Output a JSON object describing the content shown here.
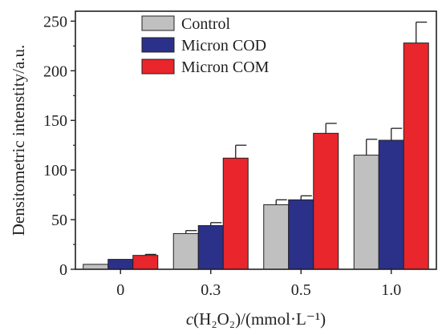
{
  "chart_data": {
    "type": "bar",
    "categories": [
      "0",
      "0.3",
      "0.5",
      "1.0"
    ],
    "series": [
      {
        "name": "Control",
        "color": "#c0c0c0",
        "values": [
          5,
          36,
          65,
          115
        ],
        "errors": [
          0,
          3,
          5,
          16
        ]
      },
      {
        "name": "Micron COD",
        "color": "#2b3188",
        "values": [
          10,
          44,
          70,
          130
        ],
        "errors": [
          0,
          3,
          4,
          12
        ]
      },
      {
        "name": "Micron COM",
        "color": "#e8262b",
        "values": [
          14,
          112,
          137,
          228
        ],
        "errors": [
          1,
          13,
          10,
          21
        ]
      }
    ],
    "xlabel": {
      "italic": "c",
      "rest": "(H₂O₂)/(mmol·L⁻¹)"
    },
    "ylabel": "Densitometric intenstity/a.u.",
    "ylim": [
      0,
      260
    ],
    "yticks": [
      0,
      50,
      100,
      150,
      200,
      250
    ],
    "legend_position": "top-left",
    "grid": false
  }
}
